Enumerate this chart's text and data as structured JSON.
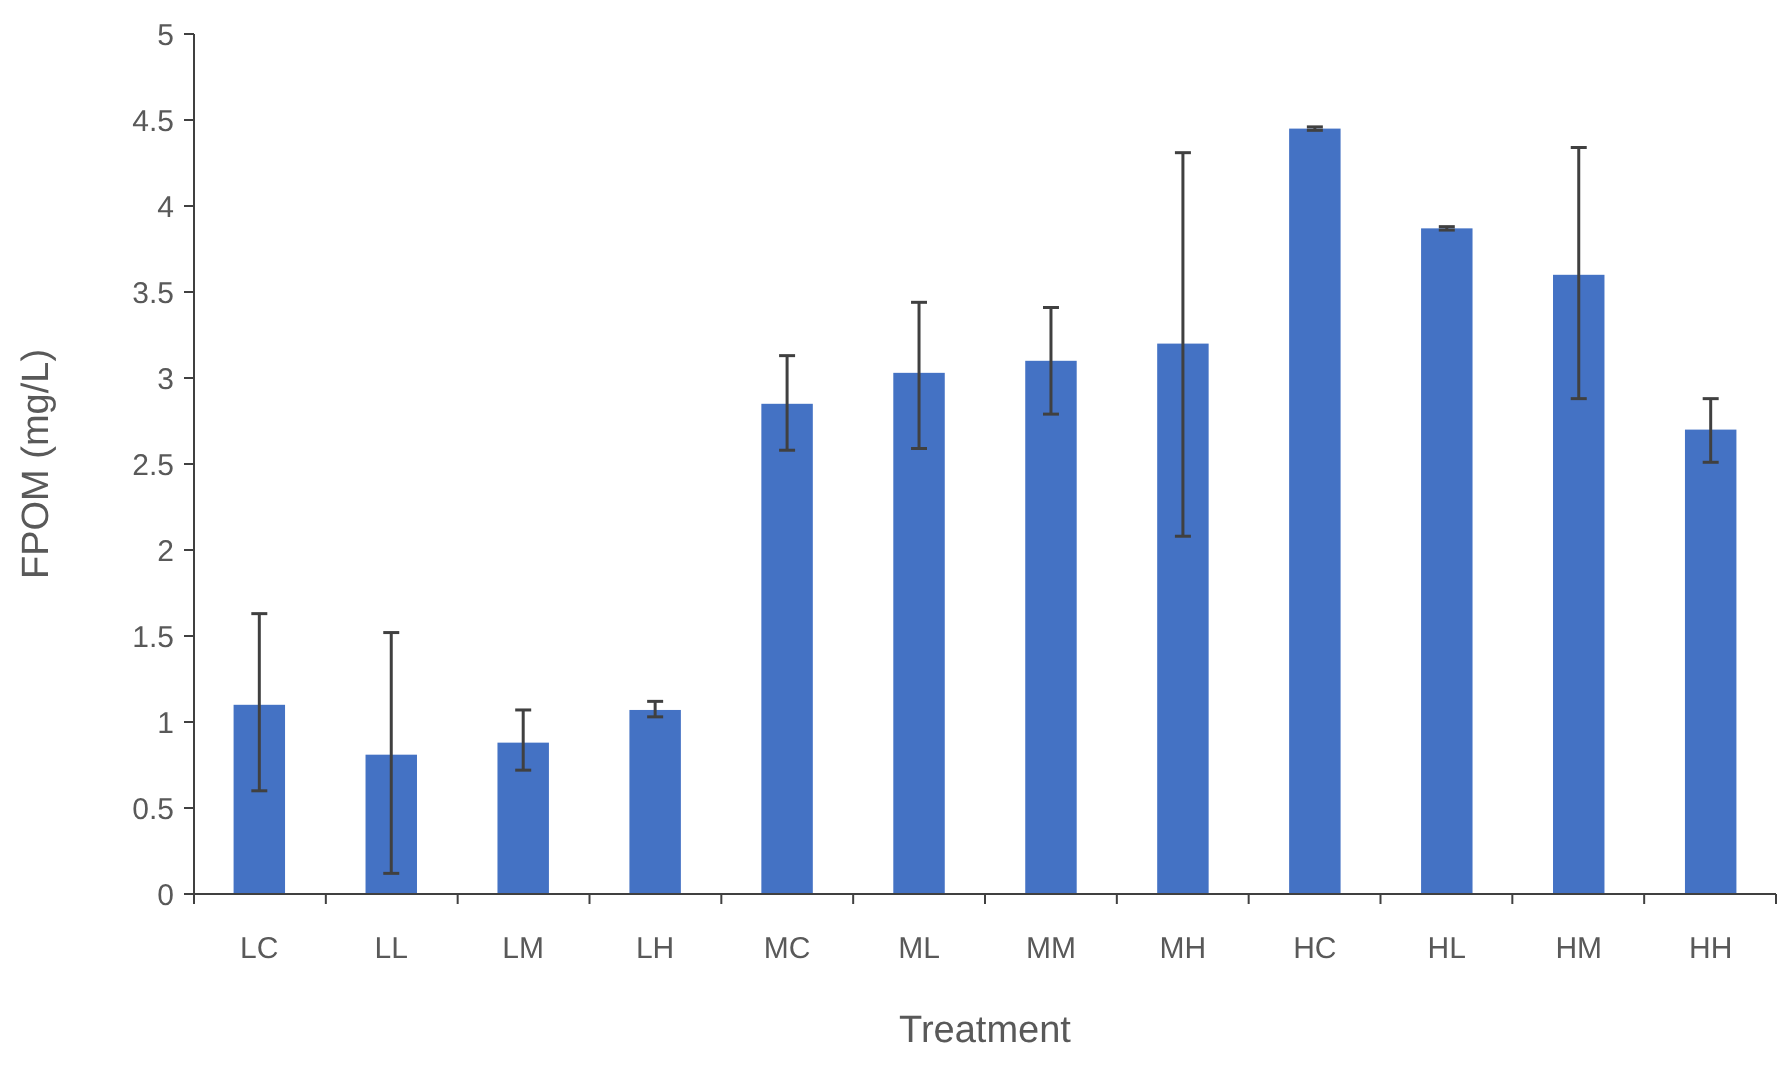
{
  "chart_data": {
    "type": "bar",
    "xlabel": "Treatment",
    "ylabel": "FPOM (mg/L)",
    "categories": [
      "LC",
      "LL",
      "LM",
      "LH",
      "MC",
      "ML",
      "MM",
      "MH",
      "HC",
      "HL",
      "HM",
      "HH"
    ],
    "values": [
      1.1,
      0.81,
      0.88,
      1.07,
      2.85,
      3.03,
      3.1,
      3.2,
      4.45,
      3.87,
      3.6,
      2.7
    ],
    "errors": [
      [
        0.6,
        1.63
      ],
      [
        0.12,
        1.52
      ],
      [
        0.72,
        1.07
      ],
      [
        1.03,
        1.12
      ],
      [
        2.58,
        3.13
      ],
      [
        2.59,
        3.44
      ],
      [
        2.79,
        3.41
      ],
      [
        2.08,
        4.31
      ],
      [
        4.44,
        4.46
      ],
      [
        3.86,
        3.88
      ],
      [
        2.88,
        4.34
      ],
      [
        2.51,
        2.88
      ]
    ],
    "color": "#4472c4",
    "ylim": [
      0,
      5
    ],
    "yticks": [
      0,
      0.5,
      1,
      1.5,
      2,
      2.5,
      3,
      3.5,
      4,
      4.5,
      5
    ],
    "grid": false
  }
}
